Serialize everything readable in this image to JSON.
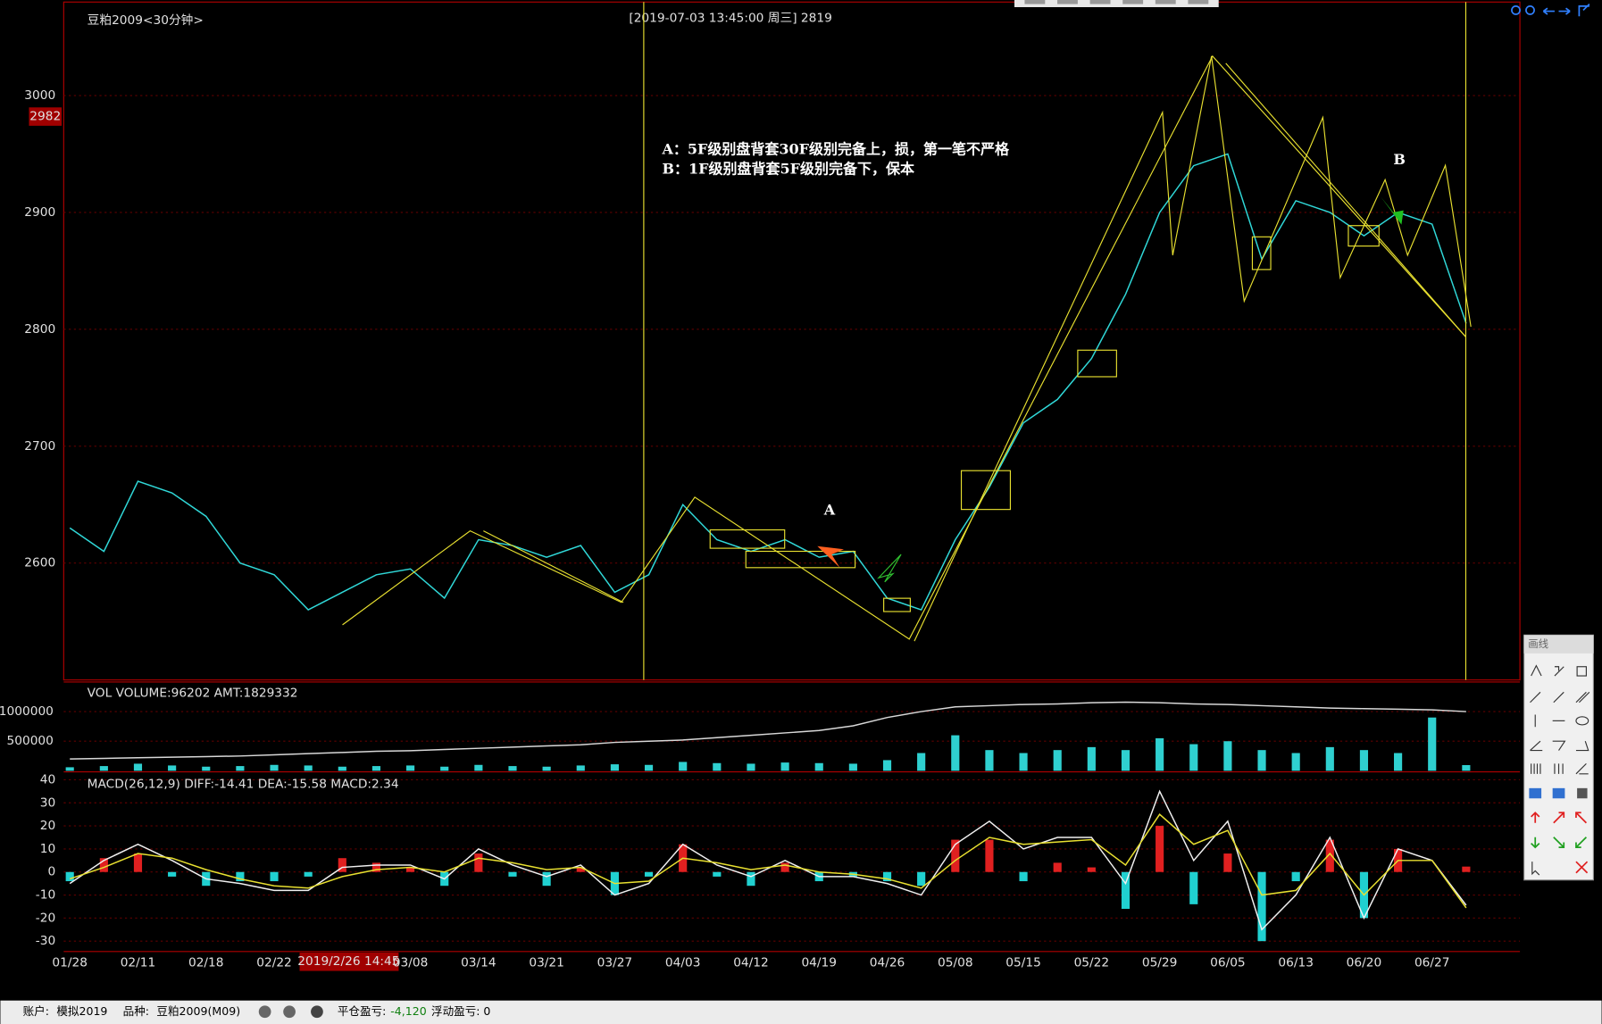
{
  "chart_data": [
    {
      "type": "line",
      "title": "豆粕2009<30分钟>",
      "subtitle": "[2019-07-03  13:45:00 周三]   2819",
      "categories": [
        "01/28",
        null,
        "02/11",
        null,
        "02/18",
        null,
        "02/22",
        null,
        null,
        null,
        "03/08",
        null,
        "03/14",
        null,
        "03/21",
        null,
        "03/27",
        null,
        "04/03",
        null,
        "04/12",
        null,
        "04/19",
        null,
        "04/26",
        null,
        "05/08",
        null,
        "05/15",
        null,
        "05/22",
        null,
        "05/29",
        null,
        "06/05",
        null,
        "06/13",
        null,
        "06/20",
        null,
        "06/27",
        null
      ],
      "series": [
        {
          "color": "#30d8d8",
          "values": [
            2630,
            2610,
            2670,
            2660,
            2640,
            2600,
            2590,
            2560,
            2575,
            2590,
            2595,
            2570,
            2620,
            2615,
            2605,
            2615,
            2575,
            2590,
            2650,
            2620,
            2610,
            2620,
            2605,
            2610,
            2570,
            2560,
            2620,
            2665,
            2720,
            2740,
            2775,
            2830,
            2900,
            2940,
            2950,
            2860,
            2910,
            2900,
            2880,
            2900,
            2890,
            2805
          ]
        }
      ],
      "ylim": [
        2500,
        3080
      ],
      "yticks": [
        2600,
        2700,
        2800,
        2900,
        3000
      ],
      "grid": true,
      "crosshair": {
        "y_value": 2982,
        "x_label": "2019/2/26 14:45"
      },
      "annotations": [
        "A：5F级别盘背套30F级别完备上，损，第一笔不严格",
        "B：1F级别盘背套5F级别完备下，保本",
        "A",
        "B"
      ]
    },
    {
      "type": "combo",
      "title": "VOL  VOLUME:96202 AMT:1829332",
      "series": [
        {
          "type": "bar",
          "color": "#2fd0d0",
          "values": [
            60000,
            80000,
            120000,
            90000,
            70000,
            80000,
            100000,
            90000,
            70000,
            80000,
            90000,
            70000,
            100000,
            80000,
            70000,
            90000,
            110000,
            100000,
            150000,
            130000,
            120000,
            140000,
            130000,
            120000,
            180000,
            300000,
            600000,
            350000,
            300000,
            350000,
            400000,
            350000,
            550000,
            450000,
            500000,
            350000,
            300000,
            400000,
            350000,
            300000,
            900000,
            96202
          ]
        },
        {
          "type": "line",
          "color": "#d8d8d8",
          "values": [
            200000,
            210000,
            220000,
            230000,
            240000,
            250000,
            270000,
            290000,
            310000,
            330000,
            340000,
            360000,
            380000,
            400000,
            420000,
            440000,
            480000,
            500000,
            520000,
            560000,
            600000,
            640000,
            680000,
            760000,
            900000,
            1000000,
            1080000,
            1100000,
            1120000,
            1130000,
            1150000,
            1160000,
            1150000,
            1130000,
            1120000,
            1100000,
            1080000,
            1060000,
            1050000,
            1040000,
            1030000,
            1000000
          ]
        }
      ],
      "ylim": [
        0,
        1500000
      ],
      "yticks": [
        500000,
        1000000
      ],
      "grid": true
    },
    {
      "type": "combo",
      "title": "MACD(26,12,9)  DIFF:-14.41 DEA:-15.58 MACD:2.34",
      "series": [
        {
          "type": "bar",
          "color": "#e02020",
          "negative_color": "#20d0d0",
          "values": [
            -4,
            6,
            8,
            -2,
            -6,
            -4,
            -4,
            -2,
            6,
            4,
            2,
            -6,
            8,
            -2,
            -6,
            2,
            -10,
            -2,
            12,
            -2,
            -6,
            4,
            -4,
            -2,
            -4,
            -6,
            14,
            14,
            -4,
            4,
            2,
            -16,
            20,
            -14,
            8,
            -30,
            -4,
            14,
            -20,
            10,
            0,
            2.34
          ]
        },
        {
          "type": "line",
          "color": "#f0f0f0",
          "values": [
            -5,
            5,
            12,
            5,
            -3,
            -5,
            -8,
            -8,
            2,
            3,
            3,
            -3,
            10,
            3,
            -2,
            3,
            -10,
            -5,
            12,
            3,
            -2,
            5,
            -2,
            -2,
            -5,
            -10,
            12,
            22,
            10,
            15,
            15,
            -5,
            35,
            5,
            22,
            -25,
            -10,
            15,
            -20,
            10,
            5,
            -14.41
          ]
        },
        {
          "type": "line",
          "color": "#e8e030",
          "values": [
            -3,
            2,
            8,
            6,
            1,
            -3,
            -6,
            -7,
            -2,
            1,
            2,
            0,
            6,
            4,
            1,
            2,
            -5,
            -4,
            6,
            4,
            1,
            3,
            0,
            -1,
            -3,
            -7,
            5,
            15,
            12,
            13,
            14,
            3,
            25,
            12,
            18,
            -10,
            -8,
            8,
            -10,
            5,
            5,
            -15.58
          ]
        }
      ],
      "ylim": [
        -34.5,
        43
      ],
      "yticks": [
        -30,
        -20,
        -10,
        0,
        10,
        20,
        30,
        40
      ],
      "grid": true
    }
  ],
  "toolbox": {
    "title": "画线"
  },
  "status_bar": {
    "account_label": "账户:",
    "account": "模拟2019",
    "product_label": "品种:",
    "product": "豆粕2009(M09)",
    "closed_pnl_label": "平仓盈亏:",
    "closed_pnl": "-4,120",
    "floating_pnl_label": "浮动盈亏:",
    "floating_pnl": "0"
  }
}
